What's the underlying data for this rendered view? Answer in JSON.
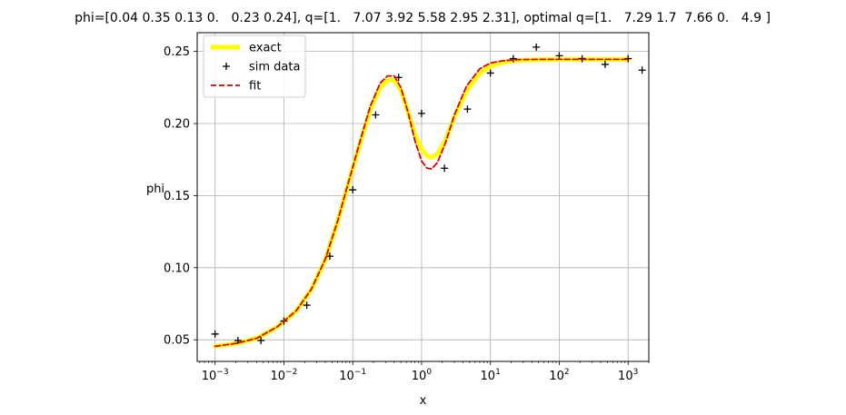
{
  "chart_data": {
    "type": "line",
    "title": "phi=[0.04 0.35 0.13 0.   0.23 0.24], q=[1.   7.07 3.92 5.58 2.95 2.31], optimal q=[1.   7.29 1.7  7.66 0.   4.9 ]",
    "xlabel": "x",
    "ylabel": "phi",
    "x_scale": "log",
    "xlim": [
      0.00055,
      2000
    ],
    "ylim": [
      0.035,
      0.263
    ],
    "x_ticks": [
      {
        "value": 0.001,
        "mantissa": "10",
        "exponent": "−3"
      },
      {
        "value": 0.01,
        "mantissa": "10",
        "exponent": "−2"
      },
      {
        "value": 0.1,
        "mantissa": "10",
        "exponent": "−1"
      },
      {
        "value": 1,
        "mantissa": "10",
        "exponent": "0"
      },
      {
        "value": 10,
        "mantissa": "10",
        "exponent": "1"
      },
      {
        "value": 100,
        "mantissa": "10",
        "exponent": "2"
      },
      {
        "value": 1000,
        "mantissa": "10",
        "exponent": "3"
      }
    ],
    "y_ticks": [
      {
        "value": 0.05,
        "label": "0.05"
      },
      {
        "value": 0.1,
        "label": "0.10"
      },
      {
        "value": 0.15,
        "label": "0.15"
      },
      {
        "value": 0.2,
        "label": "0.20"
      },
      {
        "value": 0.25,
        "label": "0.25"
      }
    ],
    "grid": true,
    "legend_position": "top-left",
    "series": [
      {
        "name": "exact",
        "style": "line",
        "color": "#ffff00",
        "points": [
          [
            0.001,
            0.0455
          ],
          [
            0.002,
            0.0475
          ],
          [
            0.004,
            0.051
          ],
          [
            0.008,
            0.059
          ],
          [
            0.015,
            0.07
          ],
          [
            0.025,
            0.085
          ],
          [
            0.04,
            0.106
          ],
          [
            0.06,
            0.132
          ],
          [
            0.09,
            0.162
          ],
          [
            0.13,
            0.188
          ],
          [
            0.18,
            0.21
          ],
          [
            0.25,
            0.225
          ],
          [
            0.32,
            0.23
          ],
          [
            0.4,
            0.23
          ],
          [
            0.5,
            0.223
          ],
          [
            0.65,
            0.206
          ],
          [
            0.8,
            0.192
          ],
          [
            1.0,
            0.182
          ],
          [
            1.2,
            0.1775
          ],
          [
            1.4,
            0.1765
          ],
          [
            1.7,
            0.179
          ],
          [
            2.2,
            0.188
          ],
          [
            3.0,
            0.205
          ],
          [
            4.5,
            0.223
          ],
          [
            7.0,
            0.235
          ],
          [
            10,
            0.24
          ],
          [
            15,
            0.2425
          ],
          [
            25,
            0.2438
          ],
          [
            50,
            0.2443
          ],
          [
            100,
            0.2445
          ],
          [
            300,
            0.2445
          ],
          [
            1000,
            0.2445
          ]
        ]
      },
      {
        "name": "sim data",
        "style": "markers",
        "color": "#000000",
        "points": [
          [
            0.001,
            0.054
          ],
          [
            0.00215,
            0.0495
          ],
          [
            0.00464,
            0.0495
          ],
          [
            0.01,
            0.063
          ],
          [
            0.0215,
            0.074
          ],
          [
            0.0464,
            0.108
          ],
          [
            0.1,
            0.154
          ],
          [
            0.215,
            0.206
          ],
          [
            0.464,
            0.232
          ],
          [
            1.0,
            0.207
          ],
          [
            2.15,
            0.169
          ],
          [
            4.64,
            0.21
          ],
          [
            10,
            0.235
          ],
          [
            21.5,
            0.245
          ],
          [
            46.4,
            0.253
          ],
          [
            100,
            0.247
          ],
          [
            215,
            0.245
          ],
          [
            464,
            0.241
          ],
          [
            1000,
            0.245
          ],
          [
            1600,
            0.237
          ]
        ]
      },
      {
        "name": "fit",
        "style": "dashed",
        "color": "#dd0000",
        "points": [
          [
            0.001,
            0.0455
          ],
          [
            0.002,
            0.0475
          ],
          [
            0.004,
            0.051
          ],
          [
            0.008,
            0.059
          ],
          [
            0.015,
            0.07
          ],
          [
            0.025,
            0.085
          ],
          [
            0.04,
            0.106
          ],
          [
            0.06,
            0.132
          ],
          [
            0.09,
            0.162
          ],
          [
            0.13,
            0.189
          ],
          [
            0.18,
            0.212
          ],
          [
            0.25,
            0.228
          ],
          [
            0.32,
            0.233
          ],
          [
            0.4,
            0.233
          ],
          [
            0.5,
            0.225
          ],
          [
            0.65,
            0.206
          ],
          [
            0.8,
            0.188
          ],
          [
            1.0,
            0.174
          ],
          [
            1.2,
            0.169
          ],
          [
            1.4,
            0.1685
          ],
          [
            1.7,
            0.173
          ],
          [
            2.2,
            0.186
          ],
          [
            3.0,
            0.206
          ],
          [
            4.5,
            0.226
          ],
          [
            7.0,
            0.238
          ],
          [
            10,
            0.242
          ],
          [
            15,
            0.2435
          ],
          [
            25,
            0.2443
          ],
          [
            50,
            0.2445
          ],
          [
            100,
            0.2445
          ],
          [
            300,
            0.2445
          ],
          [
            1000,
            0.2445
          ]
        ]
      }
    ]
  }
}
